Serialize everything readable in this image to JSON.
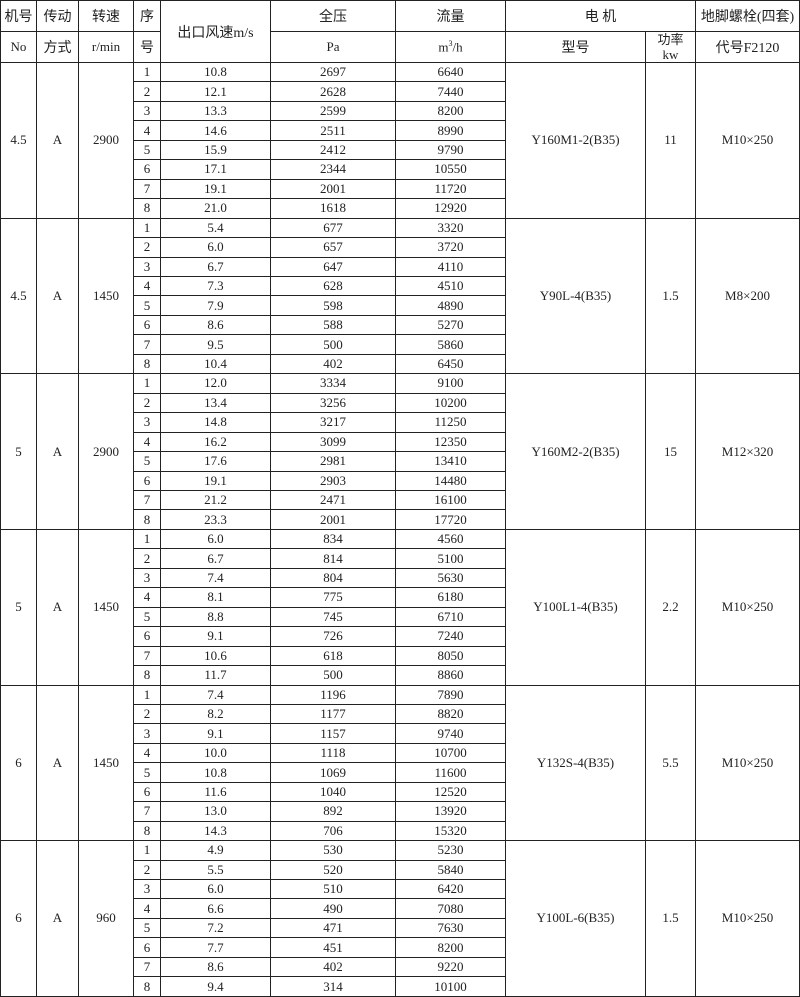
{
  "header": {
    "machine_no": [
      "机号",
      "No"
    ],
    "drive": [
      "传动",
      "方式"
    ],
    "speed": [
      "转速",
      "r/min"
    ],
    "seq": [
      "序",
      "号"
    ],
    "velocity": "出口风速m/s",
    "pressure": [
      "全压",
      "Pa"
    ],
    "flow": [
      "流量",
      "m",
      "3",
      "/h"
    ],
    "motor": "电  机",
    "motor_model": "型号",
    "power": [
      "功率",
      "kw"
    ],
    "bolts": "地脚螺栓(四套)",
    "bolt_code": "代号F2120"
  },
  "groups": [
    {
      "no": "4.5",
      "drive": "A",
      "speed": "2900",
      "motor": "Y160M1-2(B35)",
      "power": "11",
      "bolt": "M10×250",
      "rows": [
        [
          "1",
          "10.8",
          "2697",
          "6640"
        ],
        [
          "2",
          "12.1",
          "2628",
          "7440"
        ],
        [
          "3",
          "13.3",
          "2599",
          "8200"
        ],
        [
          "4",
          "14.6",
          "2511",
          "8990"
        ],
        [
          "5",
          "15.9",
          "2412",
          "9790"
        ],
        [
          "6",
          "17.1",
          "2344",
          "10550"
        ],
        [
          "7",
          "19.1",
          "2001",
          "11720"
        ],
        [
          "8",
          "21.0",
          "1618",
          "12920"
        ]
      ]
    },
    {
      "no": "4.5",
      "drive": "A",
      "speed": "1450",
      "motor": "Y90L-4(B35)",
      "power": "1.5",
      "bolt": "M8×200",
      "rows": [
        [
          "1",
          "5.4",
          "677",
          "3320"
        ],
        [
          "2",
          "6.0",
          "657",
          "3720"
        ],
        [
          "3",
          "6.7",
          "647",
          "4110"
        ],
        [
          "4",
          "7.3",
          "628",
          "4510"
        ],
        [
          "5",
          "7.9",
          "598",
          "4890"
        ],
        [
          "6",
          "8.6",
          "588",
          "5270"
        ],
        [
          "7",
          "9.5",
          "500",
          "5860"
        ],
        [
          "8",
          "10.4",
          "402",
          "6450"
        ]
      ]
    },
    {
      "no": "5",
      "drive": "A",
      "speed": "2900",
      "motor": "Y160M2-2(B35)",
      "power": "15",
      "bolt": "M12×320",
      "rows": [
        [
          "1",
          "12.0",
          "3334",
          "9100"
        ],
        [
          "2",
          "13.4",
          "3256",
          "10200"
        ],
        [
          "3",
          "14.8",
          "3217",
          "11250"
        ],
        [
          "4",
          "16.2",
          "3099",
          "12350"
        ],
        [
          "5",
          "17.6",
          "2981",
          "13410"
        ],
        [
          "6",
          "19.1",
          "2903",
          "14480"
        ],
        [
          "7",
          "21.2",
          "2471",
          "16100"
        ],
        [
          "8",
          "23.3",
          "2001",
          "17720"
        ]
      ]
    },
    {
      "no": "5",
      "drive": "A",
      "speed": "1450",
      "motor": "Y100L1-4(B35)",
      "power": "2.2",
      "bolt": "M10×250",
      "rows": [
        [
          "1",
          "6.0",
          "834",
          "4560"
        ],
        [
          "2",
          "6.7",
          "814",
          "5100"
        ],
        [
          "3",
          "7.4",
          "804",
          "5630"
        ],
        [
          "4",
          "8.1",
          "775",
          "6180"
        ],
        [
          "5",
          "8.8",
          "745",
          "6710"
        ],
        [
          "6",
          "9.1",
          "726",
          "7240"
        ],
        [
          "7",
          "10.6",
          "618",
          "8050"
        ],
        [
          "8",
          "11.7",
          "500",
          "8860"
        ]
      ]
    },
    {
      "no": "6",
      "drive": "A",
      "speed": "1450",
      "motor": "Y132S-4(B35)",
      "power": "5.5",
      "bolt": "M10×250",
      "rows": [
        [
          "1",
          "7.4",
          "1196",
          "7890"
        ],
        [
          "2",
          "8.2",
          "1177",
          "8820"
        ],
        [
          "3",
          "9.1",
          "1157",
          "9740"
        ],
        [
          "4",
          "10.0",
          "1118",
          "10700"
        ],
        [
          "5",
          "10.8",
          "1069",
          "11600"
        ],
        [
          "6",
          "11.6",
          "1040",
          "12520"
        ],
        [
          "7",
          "13.0",
          "892",
          "13920"
        ],
        [
          "8",
          "14.3",
          "706",
          "15320"
        ]
      ]
    },
    {
      "no": "6",
      "drive": "A",
      "speed": "960",
      "motor": "Y100L-6(B35)",
      "power": "1.5",
      "bolt": "M10×250",
      "rows": [
        [
          "1",
          "4.9",
          "530",
          "5230"
        ],
        [
          "2",
          "5.5",
          "520",
          "5840"
        ],
        [
          "3",
          "6.0",
          "510",
          "6420"
        ],
        [
          "4",
          "6.6",
          "490",
          "7080"
        ],
        [
          "5",
          "7.2",
          "471",
          "7630"
        ],
        [
          "6",
          "7.7",
          "451",
          "8200"
        ],
        [
          "7",
          "8.6",
          "402",
          "9220"
        ],
        [
          "8",
          "9.4",
          "314",
          "10100"
        ]
      ]
    }
  ]
}
